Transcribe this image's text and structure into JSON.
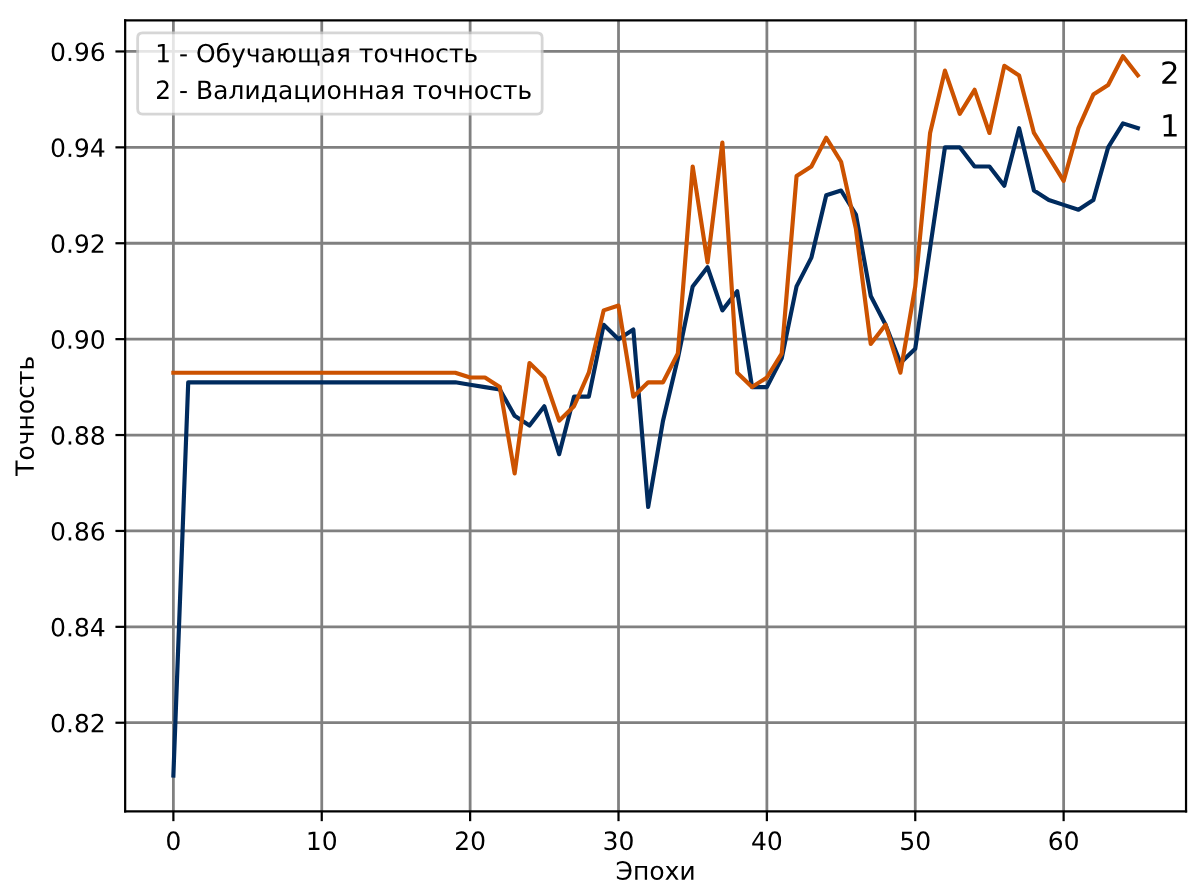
{
  "chart_data": {
    "type": "line",
    "xlabel": "Эпохи",
    "ylabel": "Точность",
    "x": [
      0,
      1,
      2,
      3,
      4,
      5,
      6,
      7,
      8,
      9,
      10,
      11,
      12,
      13,
      14,
      15,
      16,
      17,
      18,
      19,
      20,
      21,
      22,
      23,
      24,
      25,
      26,
      27,
      28,
      29,
      30,
      31,
      32,
      33,
      34,
      35,
      36,
      37,
      38,
      39,
      40,
      41,
      42,
      43,
      44,
      45,
      46,
      47,
      48,
      49,
      50,
      51,
      52,
      53,
      54,
      55,
      56,
      57,
      58,
      59,
      60,
      61,
      62,
      63,
      64,
      65
    ],
    "series": [
      {
        "color": "#002b5e",
        "values": [
          0.809,
          0.891,
          0.891,
          0.891,
          0.891,
          0.891,
          0.891,
          0.891,
          0.891,
          0.891,
          0.891,
          0.891,
          0.891,
          0.891,
          0.891,
          0.891,
          0.891,
          0.891,
          0.891,
          0.891,
          0.8905,
          0.89,
          0.8895,
          0.884,
          0.882,
          0.886,
          0.876,
          0.888,
          0.888,
          0.903,
          0.9,
          0.902,
          0.865,
          0.883,
          0.896,
          0.911,
          0.915,
          0.906,
          0.91,
          0.89,
          0.89,
          0.896,
          0.911,
          0.917,
          0.93,
          0.931,
          0.926,
          0.909,
          0.903,
          0.895,
          0.898,
          0.919,
          0.94,
          0.94,
          0.936,
          0.936,
          0.932,
          0.944,
          0.931,
          0.929,
          0.928,
          0.927,
          0.929,
          0.94,
          0.945,
          0.944
        ]
      },
      {
        "color": "#cc5200",
        "values": [
          0.893,
          0.893,
          0.893,
          0.893,
          0.893,
          0.893,
          0.893,
          0.893,
          0.893,
          0.893,
          0.893,
          0.893,
          0.893,
          0.893,
          0.893,
          0.893,
          0.893,
          0.893,
          0.893,
          0.893,
          0.892,
          0.892,
          0.89,
          0.872,
          0.895,
          0.892,
          0.883,
          0.886,
          0.893,
          0.906,
          0.907,
          0.888,
          0.891,
          0.891,
          0.897,
          0.936,
          0.916,
          0.941,
          0.893,
          0.89,
          0.892,
          0.897,
          0.934,
          0.936,
          0.942,
          0.937,
          0.923,
          0.899,
          0.903,
          0.893,
          0.911,
          0.943,
          0.956,
          0.947,
          0.952,
          0.943,
          0.957,
          0.955,
          0.943,
          0.938,
          0.933,
          0.944,
          0.951,
          0.953,
          0.959,
          0.955
        ]
      }
    ],
    "annotations": [
      "1 - Обучающая точность",
      "2 - Валидационная точность",
      {
        "text": "1",
        "x": 65,
        "y": 0.944
      },
      {
        "text": "2",
        "x": 65,
        "y": 0.955
      }
    ],
    "xlim": [
      -3.25,
      68.25
    ],
    "ylim": [
      0.8015,
      0.9665
    ],
    "xticks": [
      0,
      10,
      20,
      30,
      40,
      50,
      60
    ],
    "yticks": [
      {
        "value": 0.82,
        "label": "0.82"
      },
      {
        "value": 0.84,
        "label": "0.84"
      },
      {
        "value": 0.86,
        "label": "0.86"
      },
      {
        "value": 0.88,
        "label": "0.88"
      },
      {
        "value": 0.9,
        "label": "0.90"
      },
      {
        "value": 0.92,
        "label": "0.92"
      },
      {
        "value": 0.94,
        "label": "0.94"
      },
      {
        "value": 0.96,
        "label": "0.96"
      }
    ],
    "grid": true,
    "line_style": "solid",
    "marker": "none"
  }
}
